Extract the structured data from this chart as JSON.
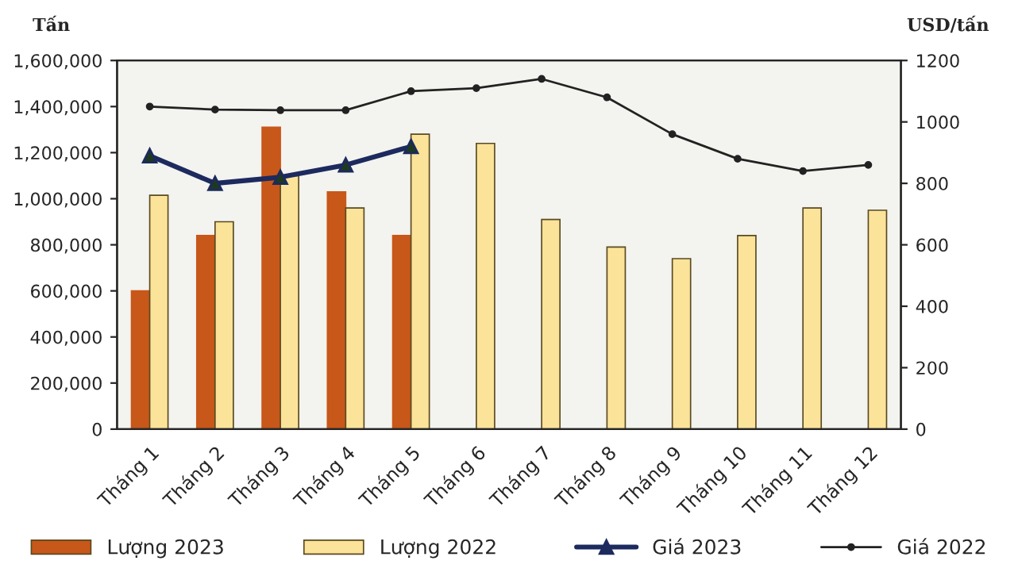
{
  "chart_data": {
    "type": "bar",
    "ylabel": "Tấn",
    "y2label": "USD/tấn",
    "categories": [
      "Tháng 1",
      "Tháng 2",
      "Tháng 3",
      "Tháng 4",
      "Tháng 5",
      "Tháng 6",
      "Tháng 7",
      "Tháng 8",
      "Tháng 9",
      "Tháng 10",
      "Tháng 11",
      "Tháng 12"
    ],
    "series": [
      {
        "name": "Lượng 2023",
        "color": "#c8571a",
        "values": [
          600000,
          840000,
          1310000,
          1030000,
          840000,
          null,
          null,
          null,
          null,
          null,
          null,
          null
        ]
      },
      {
        "name": "Lượng 2022",
        "color": "#fbe39a",
        "values": [
          1015000,
          900000,
          1100000,
          960000,
          1280000,
          1240000,
          910000,
          790000,
          740000,
          840000,
          960000,
          950000
        ]
      },
      {
        "name": "Giá 2023",
        "type": "line",
        "axis": "y2",
        "color": "#1c2a5e",
        "marker": "triangle",
        "values": [
          890,
          800,
          820,
          860,
          920,
          null,
          null,
          null,
          null,
          null,
          null,
          null
        ]
      },
      {
        "name": "Giá 2022",
        "type": "line",
        "axis": "y2",
        "color": "#222222",
        "marker": "circle",
        "values": [
          1050,
          1040,
          1038,
          1038,
          1100,
          1110,
          1140,
          1080,
          960,
          880,
          840,
          860
        ]
      }
    ],
    "ylim": [
      0,
      1600000
    ],
    "yticks": [
      {
        "value": 0,
        "label": "0"
      },
      {
        "value": 200000,
        "label": "200,000"
      },
      {
        "value": 400000,
        "label": "400,000"
      },
      {
        "value": 600000,
        "label": "600,000"
      },
      {
        "value": 800000,
        "label": "800,000"
      },
      {
        "value": 1000000,
        "label": "1,000,000"
      },
      {
        "value": 1200000,
        "label": "1,200,000"
      },
      {
        "value": 1400000,
        "label": "1,400,000"
      },
      {
        "value": 1600000,
        "label": "1,600,000"
      }
    ],
    "y2lim": [
      0,
      1200
    ],
    "y2ticks": [
      0,
      200,
      400,
      600,
      800,
      1000,
      1200
    ],
    "grid": false,
    "legend": "bottom"
  }
}
